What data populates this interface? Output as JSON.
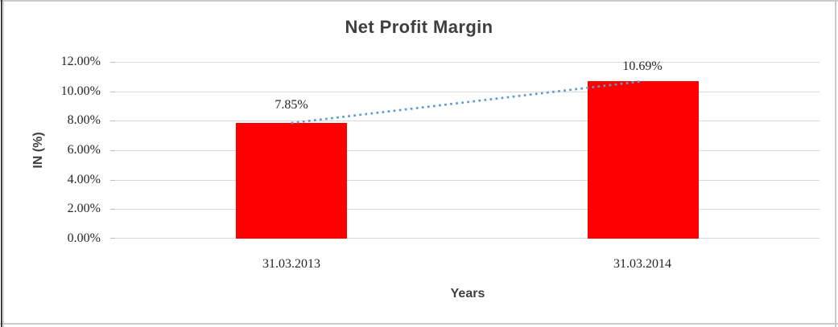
{
  "chart_data": {
    "type": "bar",
    "title": "Net Profit Margin",
    "xlabel": "Years",
    "ylabel": "IN (%)",
    "categories": [
      "31.03.2013",
      "31.03.2014"
    ],
    "values": [
      7.85,
      10.69
    ],
    "data_labels": [
      "7.85%",
      "10.69%"
    ],
    "yticks": [
      "12.00%",
      "10.00%",
      "8.00%",
      "6.00%",
      "4.00%",
      "2.00%",
      "0.00%"
    ],
    "ylim": [
      0,
      12
    ],
    "ytick_step": 2,
    "grid": "horizontal",
    "legend": "none",
    "trendline": {
      "type": "linear",
      "style": "dotted",
      "from_value": 7.85,
      "to_value": 10.69
    }
  },
  "colors": {
    "bar": "#FF0000",
    "trendline": "#5B9BD5",
    "gridline": "#D9D9D9",
    "tick_mark": "#BFBFBF",
    "title_text": "#3F3F3F",
    "axis_title_text": "#3F3F3F",
    "tick_label_text": "#262626",
    "data_label_text": "#262626",
    "border_light": "#C9C9C9",
    "border_dark": "#3D3D3D"
  }
}
